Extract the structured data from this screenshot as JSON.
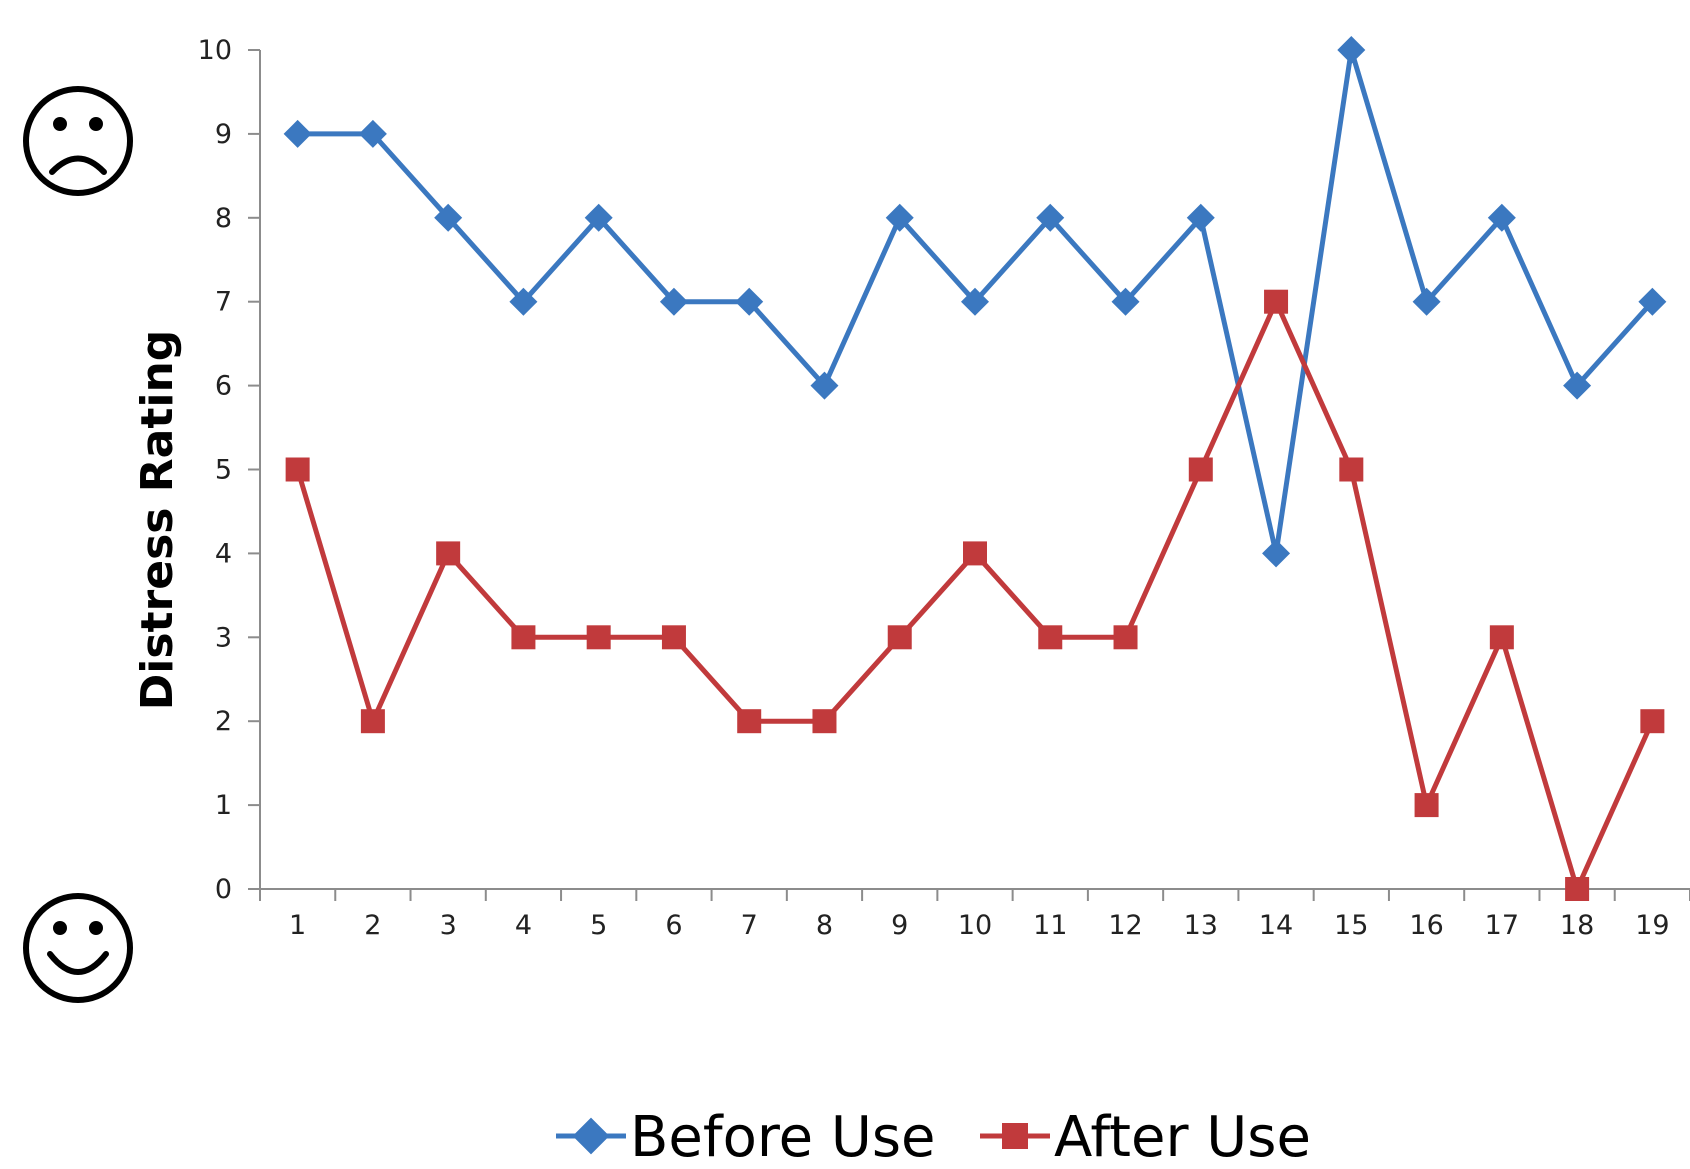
{
  "chart_data": {
    "type": "line",
    "title": "",
    "xlabel": "",
    "ylabel": "Distress Rating",
    "categories": [
      "1",
      "2",
      "3",
      "4",
      "5",
      "6",
      "7",
      "8",
      "9",
      "10",
      "11",
      "12",
      "13",
      "14",
      "15",
      "16",
      "17",
      "18",
      "19"
    ],
    "series": [
      {
        "name": "Before Use",
        "marker": "diamond",
        "color": "#3b78c0",
        "values": [
          9,
          9,
          8,
          7,
          8,
          7,
          7,
          6,
          8,
          7,
          8,
          7,
          8,
          4,
          10,
          7,
          8,
          6,
          7
        ]
      },
      {
        "name": "After Use",
        "marker": "square",
        "color": "#c13a3c",
        "values": [
          5,
          2,
          4,
          3,
          3,
          3,
          2,
          2,
          3,
          4,
          3,
          3,
          5,
          7,
          5,
          1,
          3,
          0,
          2
        ]
      }
    ],
    "ylim": [
      0,
      10
    ],
    "yticks": [
      "0",
      "1",
      "2",
      "3",
      "4",
      "5",
      "6",
      "7",
      "8",
      "9",
      "10"
    ],
    "grid": false,
    "legend_position": "bottom",
    "annotations": [
      {
        "icon": "frowning-face-icon",
        "position": "top-left"
      },
      {
        "icon": "smiling-face-icon",
        "position": "bottom-left"
      }
    ]
  }
}
